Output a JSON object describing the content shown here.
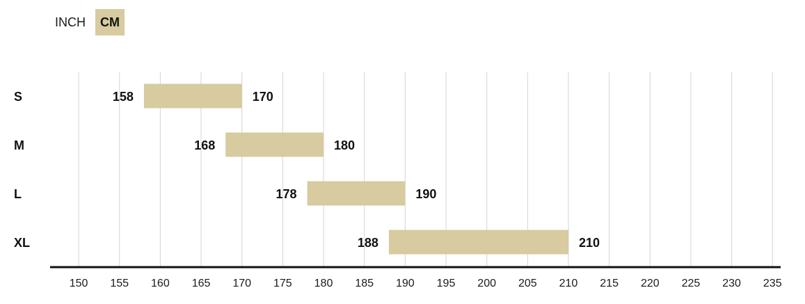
{
  "unit_toggle": {
    "options": [
      {
        "label": "INCH",
        "selected": false
      },
      {
        "label": "CM",
        "selected": true
      }
    ],
    "active_color": "#d7cb9f"
  },
  "chart_data": {
    "type": "bar",
    "orientation": "horizontal-range",
    "categories": [
      "S",
      "M",
      "L",
      "XL"
    ],
    "ranges": [
      {
        "category": "S",
        "min": 158,
        "max": 170
      },
      {
        "category": "M",
        "min": 168,
        "max": 180
      },
      {
        "category": "L",
        "min": 178,
        "max": 190
      },
      {
        "category": "XL",
        "min": 188,
        "max": 210
      }
    ],
    "x_ticks": [
      150,
      155,
      160,
      165,
      170,
      175,
      180,
      185,
      190,
      195,
      200,
      205,
      210,
      215,
      220,
      225,
      230,
      235
    ],
    "xlim": [
      146.5,
      236
    ],
    "grid": true,
    "bar_color": "#d7cb9f",
    "grid_color": "#d4d4d4",
    "axis_color": "#111111"
  }
}
